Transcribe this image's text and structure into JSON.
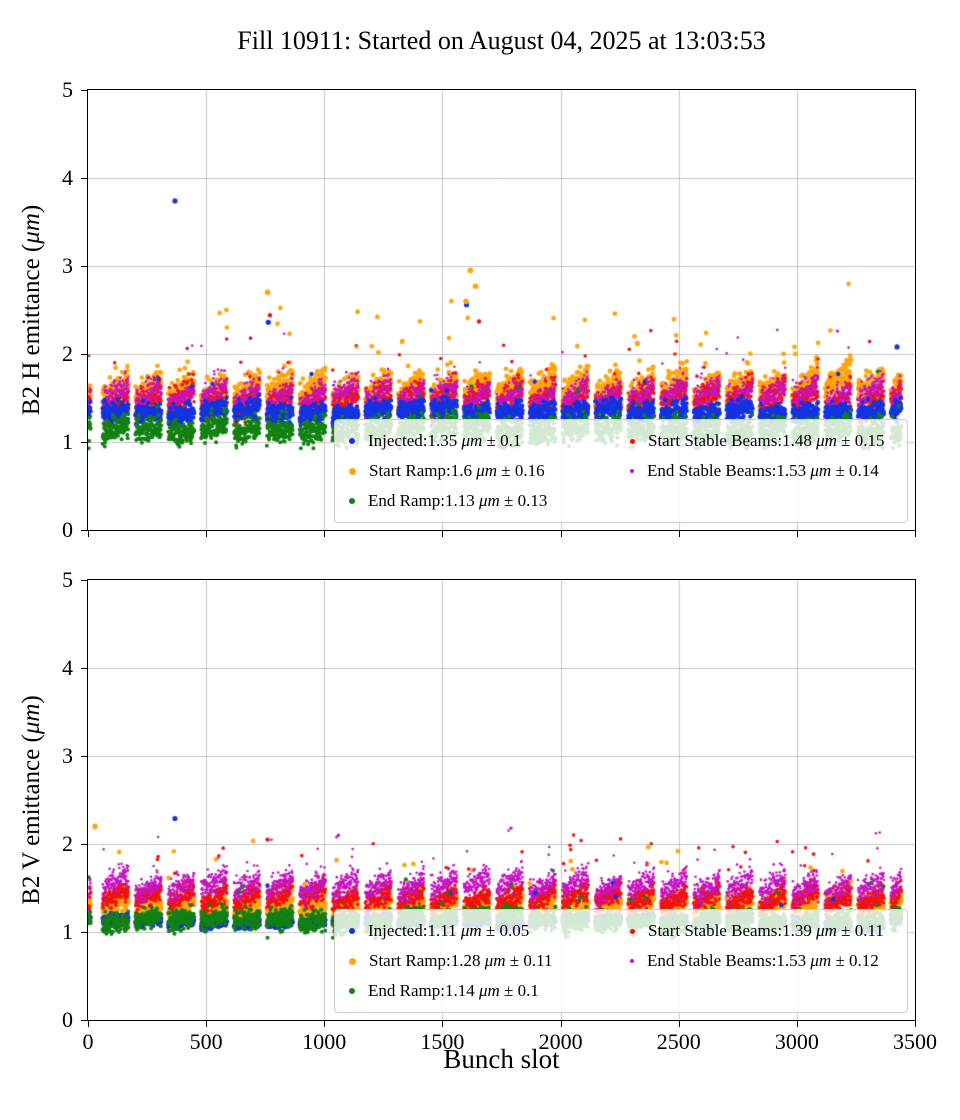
{
  "figure": {
    "title": "Fill 10911: Started on August 04, 2025 at 13:03:53",
    "xlabel": "Bunch slot",
    "background": "#ffffff"
  },
  "chart_data": [
    {
      "type": "scatter",
      "subplot": "B2 H emittance",
      "ylabel": "B2 H emittance (μm)",
      "xlabel": "Bunch slot",
      "xlim": [
        0,
        3500
      ],
      "ylim": [
        0,
        5
      ],
      "xticks": [
        0,
        500,
        1000,
        1500,
        2000,
        2500,
        3000,
        3500
      ],
      "yticks": [
        0,
        1,
        2,
        3,
        4,
        5
      ],
      "grid": true,
      "grid_color": "#c4c4c4",
      "legend_position": "lower right",
      "x_structure": {
        "first_train": [
          2,
          10
        ],
        "train_start": 62,
        "train_length": 110,
        "train_gap": 29,
        "last_slot": 3443
      },
      "series": [
        {
          "name": "Injected",
          "label": "Injected:1.35 μm ± 0.1",
          "mean": 1.35,
          "std": 0.1,
          "color": "#1433e0",
          "size": 2.2,
          "z": 4,
          "ramp": 0.05,
          "outlier_rate": 0.004,
          "outlier_scale": 0.35
        },
        {
          "name": "Start Ramp",
          "label": "Start Ramp:1.6 μm ± 0.16",
          "mean": 1.6,
          "std": 0.16,
          "color": "#ffa510",
          "size": 2.4,
          "z": 1,
          "ramp": 0.22,
          "outlier_rate": 0.015,
          "outlier_scale": 0.75
        },
        {
          "name": "End Ramp",
          "label": "End Ramp:1.13 μm ± 0.13",
          "mean": 1.13,
          "std": 0.13,
          "color": "#128012",
          "size": 2.0,
          "z": 5,
          "ramp": 0.06,
          "outlier_rate": 0.005,
          "outlier_scale": 0.3
        },
        {
          "name": "Start Stable Beams",
          "label": "Start Stable Beams:1.48 μm ± 0.15",
          "mean": 1.48,
          "std": 0.15,
          "color": "#f01408",
          "size": 1.8,
          "z": 2,
          "ramp": 0.2,
          "outlier_rate": 0.012,
          "outlier_scale": 0.55
        },
        {
          "name": "End Stable Beams",
          "label": "End Stable Beams:1.53 μm ± 0.14",
          "mean": 1.53,
          "std": 0.14,
          "color": "#c613c6",
          "size": 1.3,
          "z": 3,
          "ramp": 0.2,
          "outlier_rate": 0.012,
          "outlier_scale": 0.5
        }
      ],
      "outlier_points": [
        {
          "series": "Injected",
          "x": 368,
          "y": 3.74
        },
        {
          "series": "Injected",
          "x": 1602,
          "y": 2.56
        },
        {
          "series": "Injected",
          "x": 763,
          "y": 2.36
        },
        {
          "series": "Injected",
          "x": 3424,
          "y": 2.08
        },
        {
          "series": "Start Ramp",
          "x": 1618,
          "y": 2.95
        },
        {
          "series": "Start Ramp",
          "x": 1640,
          "y": 2.77
        },
        {
          "series": "Start Ramp",
          "x": 760,
          "y": 2.7
        },
        {
          "series": "Start Ramp",
          "x": 1600,
          "y": 2.6
        },
        {
          "series": "Start Ramp",
          "x": 2325,
          "y": 2.12
        },
        {
          "series": "Start Stable Beams",
          "x": 770,
          "y": 2.44
        },
        {
          "series": "Start Stable Beams",
          "x": 1655,
          "y": 2.37
        },
        {
          "series": "End Stable Beams",
          "x": 3172,
          "y": 2.26
        }
      ]
    },
    {
      "type": "scatter",
      "subplot": "B2 V emittance",
      "ylabel": "B2 V emittance (μm)",
      "xlabel": "Bunch slot",
      "xlim": [
        0,
        3500
      ],
      "ylim": [
        0,
        5
      ],
      "xticks": [
        0,
        500,
        1000,
        1500,
        2000,
        2500,
        3000,
        3500
      ],
      "yticks": [
        0,
        1,
        2,
        3,
        4,
        5
      ],
      "grid": true,
      "grid_color": "#c4c4c4",
      "legend_position": "lower right",
      "x_structure": {
        "first_train": [
          2,
          10
        ],
        "train_start": 62,
        "train_length": 110,
        "train_gap": 29,
        "last_slot": 3443
      },
      "series": [
        {
          "name": "Injected",
          "label": "Injected:1.11 μm ± 0.05",
          "mean": 1.11,
          "std": 0.05,
          "color": "#1433e0",
          "size": 2.2,
          "z": 4,
          "ramp": 0.03,
          "outlier_rate": 0.003,
          "outlier_scale": 0.2
        },
        {
          "name": "Start Ramp",
          "label": "Start Ramp:1.28 μm ± 0.11",
          "mean": 1.28,
          "std": 0.11,
          "color": "#ffa510",
          "size": 2.4,
          "z": 1,
          "ramp": 0.14,
          "outlier_rate": 0.01,
          "outlier_scale": 0.45
        },
        {
          "name": "End Ramp",
          "label": "End Ramp:1.14 μm ± 0.1",
          "mean": 1.14,
          "std": 0.1,
          "color": "#128012",
          "size": 2.0,
          "z": 5,
          "ramp": 0.05,
          "outlier_rate": 0.004,
          "outlier_scale": 0.25
        },
        {
          "name": "Start Stable Beams",
          "label": "Start Stable Beams:1.39 μm ± 0.11",
          "mean": 1.39,
          "std": 0.11,
          "color": "#f01408",
          "size": 1.8,
          "z": 2,
          "ramp": 0.16,
          "outlier_rate": 0.01,
          "outlier_scale": 0.45
        },
        {
          "name": "End Stable Beams",
          "label": "End Stable Beams:1.53 μm ± 0.12",
          "mean": 1.53,
          "std": 0.12,
          "color": "#c613c6",
          "size": 1.3,
          "z": 3,
          "ramp": 0.18,
          "outlier_rate": 0.01,
          "outlier_scale": 0.4
        }
      ],
      "outlier_points": [
        {
          "series": "Injected",
          "x": 368,
          "y": 2.29
        },
        {
          "series": "Start Ramp",
          "x": 30,
          "y": 2.2
        },
        {
          "series": "End Stable Beams",
          "x": 1790,
          "y": 2.18
        },
        {
          "series": "End Stable Beams",
          "x": 1060,
          "y": 2.1
        },
        {
          "series": "Start Stable Beams",
          "x": 760,
          "y": 2.05
        }
      ]
    }
  ]
}
